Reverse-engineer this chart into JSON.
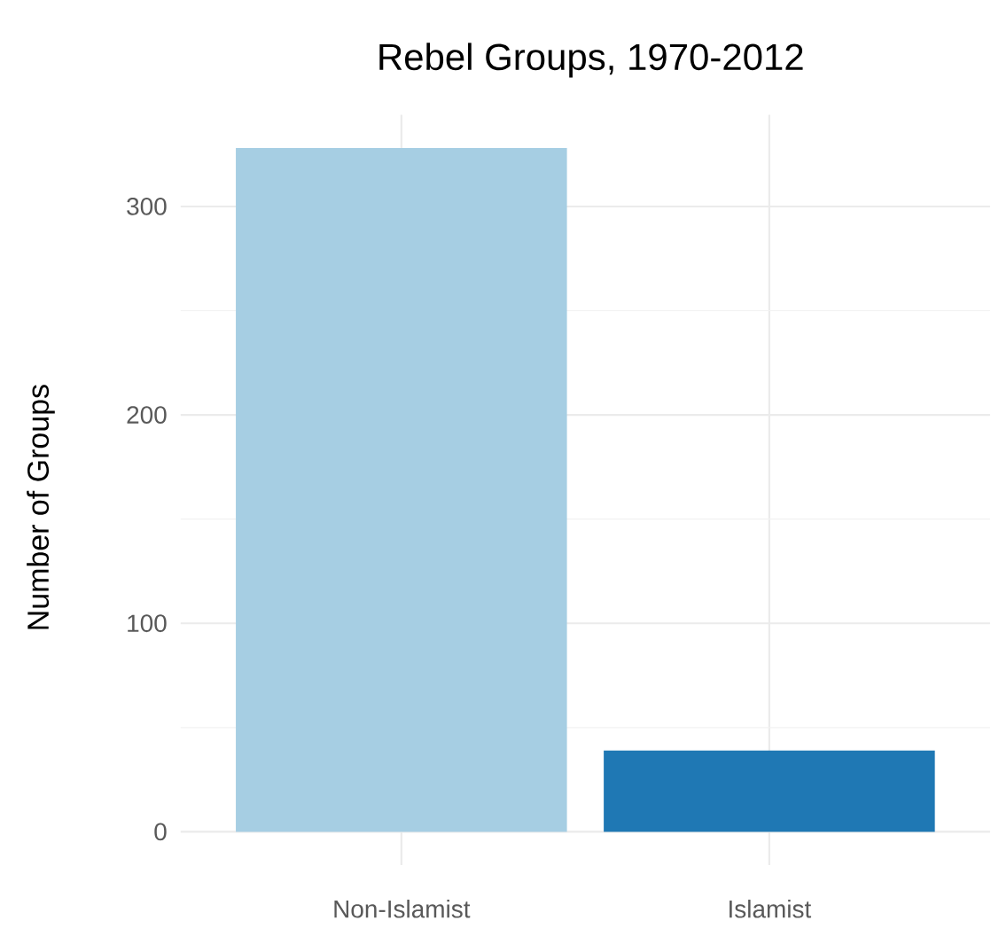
{
  "chart_data": {
    "type": "bar",
    "title": "Rebel Groups, 1970-2012",
    "ylabel": "Number of Groups",
    "categories": [
      "Non-Islamist",
      "Islamist"
    ],
    "values": [
      328,
      39
    ],
    "colors": [
      "#a6cee3",
      "#1f78b4"
    ],
    "ylim": [
      -16,
      344
    ],
    "yticks": [
      0,
      {
        "value": 50,
        "label": null
      },
      100,
      {
        "value": 150,
        "label": null
      },
      200,
      {
        "value": 250,
        "label": null
      },
      300
    ],
    "grid": true
  }
}
